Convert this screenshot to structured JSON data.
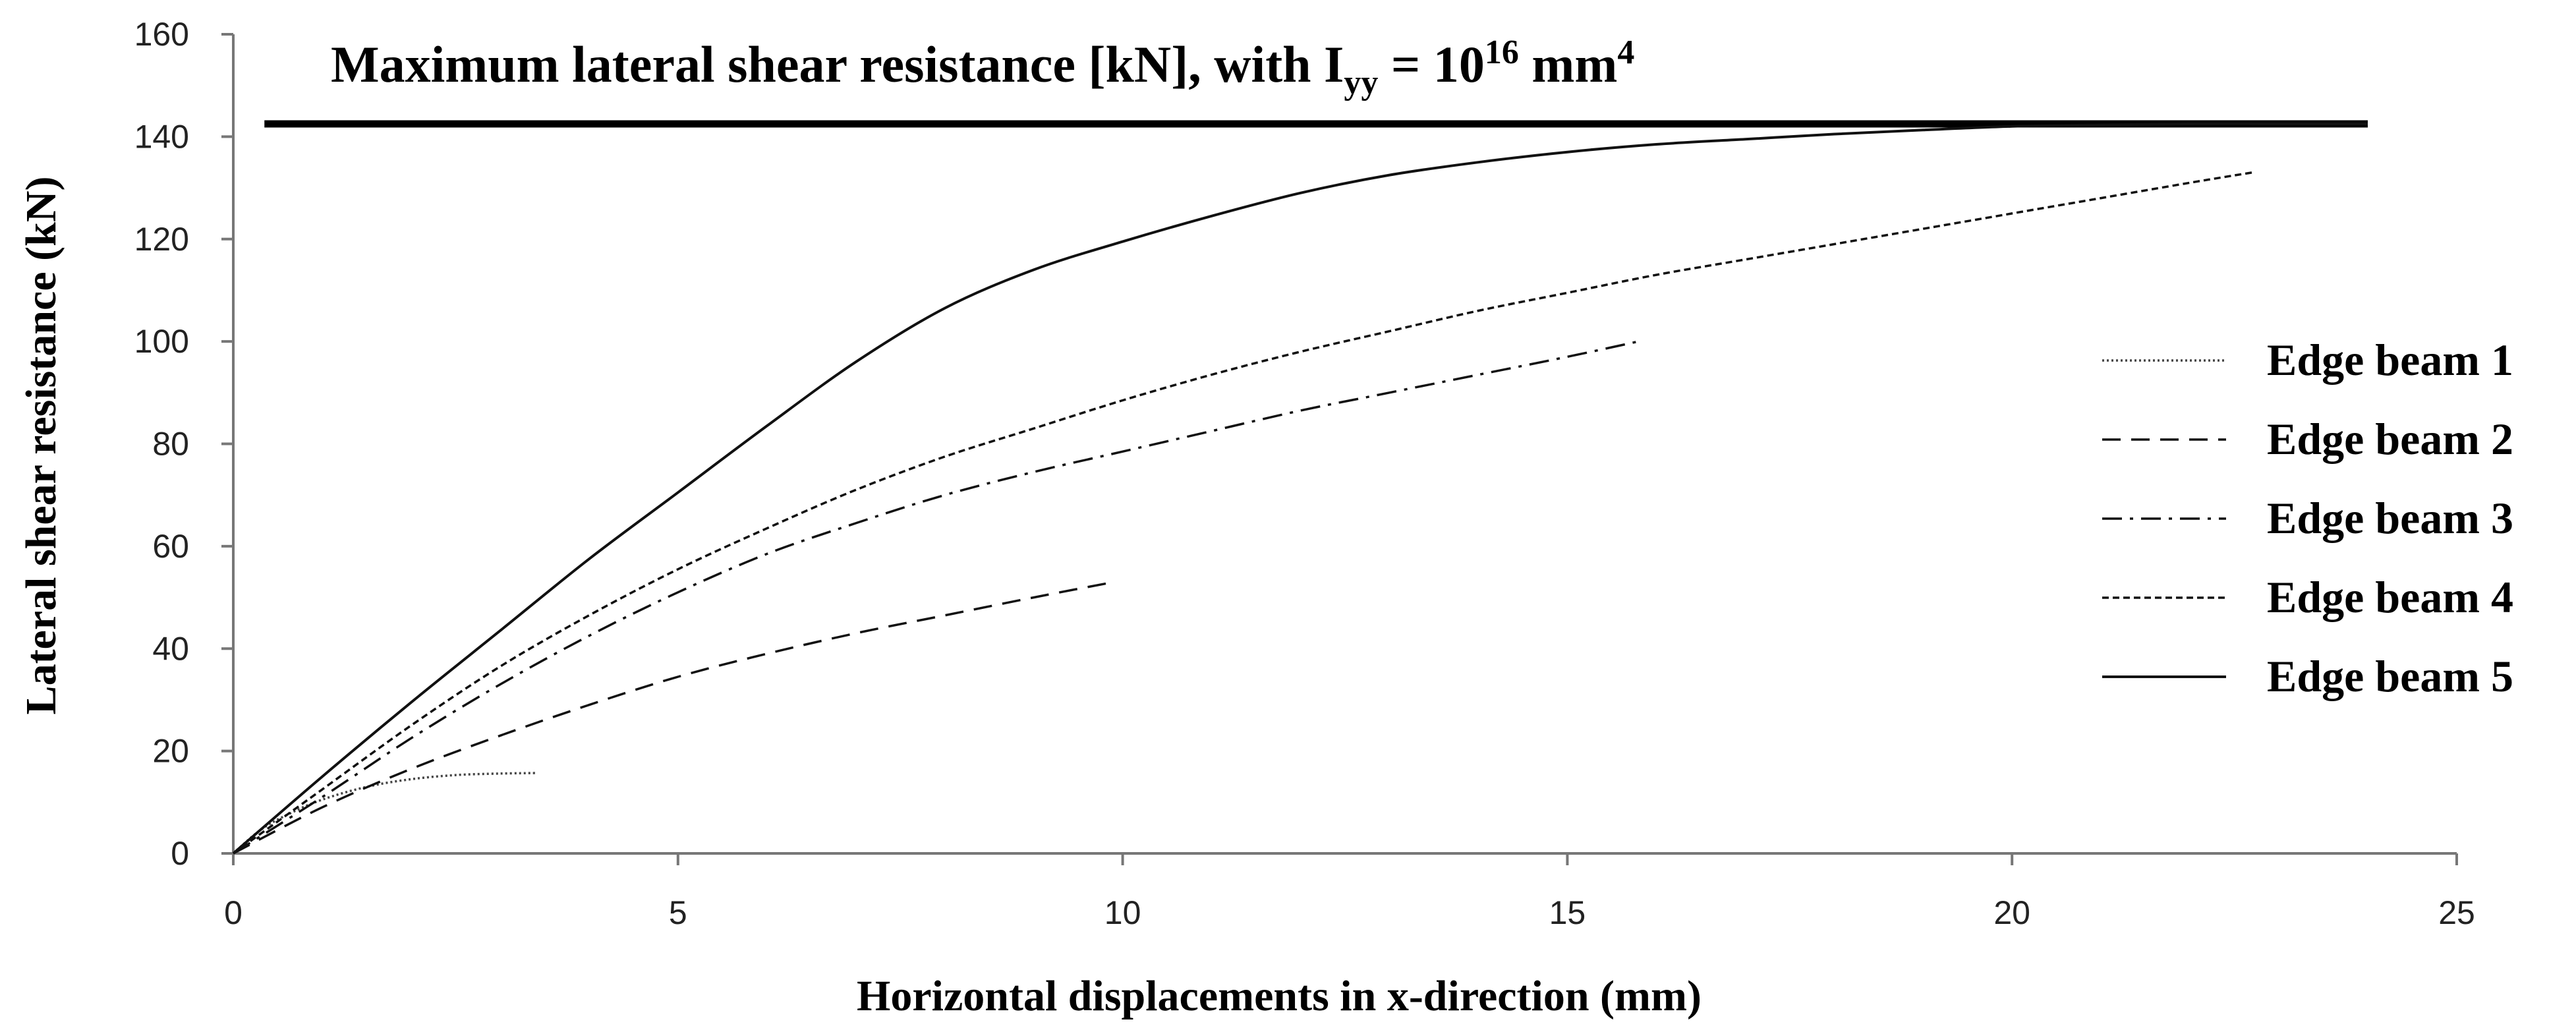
{
  "chart_data": {
    "type": "line",
    "title_parts": {
      "main": "Maximum lateral shear resistance [kN], with I",
      "sub": "yy",
      "middle": " = 10",
      "sup1": "16",
      "unit": " mm",
      "sup2": "4"
    },
    "xlabel": "Horizontal displacements in x-direction (mm)",
    "ylabel": "Lateral shear resistance (kN)",
    "xlim": [
      0,
      25
    ],
    "ylim": [
      0,
      160
    ],
    "xticks": [
      0,
      5,
      10,
      15,
      20,
      25
    ],
    "yticks": [
      0,
      20,
      40,
      60,
      80,
      100,
      120,
      140,
      160
    ],
    "grid": false,
    "legend_position": "right",
    "reference_line": {
      "y": 142.5,
      "x": [
        0.35,
        24.0
      ]
    },
    "series": [
      {
        "name": "Edge beam 1",
        "style": "dotted",
        "x": [
          0,
          0.3,
          0.6,
          1.0,
          1.5,
          2.0,
          2.5,
          3.0,
          3.4
        ],
        "y": [
          0,
          4.5,
          7.5,
          10.5,
          13.0,
          14.5,
          15.3,
          15.6,
          15.7
        ]
      },
      {
        "name": "Edge beam 2",
        "style": "dashed",
        "x": [
          0,
          1,
          2,
          3,
          4,
          5,
          6,
          7,
          8,
          9,
          9.9
        ],
        "y": [
          0,
          9,
          16.5,
          23,
          29,
          34.5,
          39,
          43,
          46.5,
          50,
          53
        ]
      },
      {
        "name": "Edge beam 3",
        "style": "dashdot",
        "x": [
          0,
          1,
          2,
          3,
          4,
          5,
          6,
          7,
          8,
          9,
          10,
          11,
          12,
          13,
          14,
          15,
          15.8
        ],
        "y": [
          0,
          11,
          22.5,
          33,
          42.5,
          51,
          58.5,
          64.5,
          70,
          74.5,
          78.5,
          82.5,
          86.5,
          90,
          93.5,
          97,
          100
        ]
      },
      {
        "name": "Edge beam 4",
        "style": "shortdash",
        "x": [
          0,
          1,
          2,
          3,
          4,
          5,
          6,
          7,
          8,
          9,
          10,
          11,
          12,
          13,
          14,
          15,
          16,
          17,
          18,
          19,
          20,
          21,
          22,
          22.7
        ],
        "y": [
          0,
          12.5,
          25,
          36.5,
          46.5,
          55.5,
          63.5,
          71,
          77.5,
          83,
          88.5,
          93.5,
          98,
          102,
          106,
          109.5,
          113,
          116,
          119,
          122,
          125,
          128,
          131,
          133
        ]
      },
      {
        "name": "Edge beam 5",
        "style": "solid",
        "x": [
          0,
          1,
          2,
          3,
          4,
          5,
          6,
          7,
          8,
          9,
          10,
          11,
          12,
          13,
          14,
          15,
          16,
          17,
          18,
          19,
          20,
          21,
          22,
          23,
          24
        ],
        "y": [
          0,
          15,
          29.5,
          43.5,
          57.5,
          70.5,
          83.5,
          96,
          106.5,
          114,
          119.5,
          124.5,
          129,
          132.5,
          135,
          137,
          138.5,
          139.5,
          140.5,
          141.3,
          142,
          142.3,
          142.5,
          142.5,
          142.5
        ]
      }
    ]
  }
}
